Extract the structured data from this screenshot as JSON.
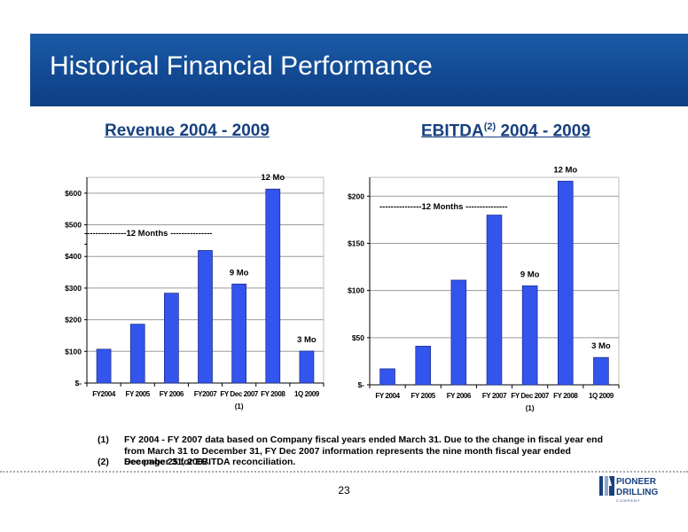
{
  "header": {
    "title": "Historical Financial Performance",
    "bg_color": "#1659a8"
  },
  "revenue": {
    "heading": "Revenue 2004 - 2009",
    "annotation_line1": "---------------12 Months ---------------",
    "annotation_line2": "-"
  },
  "ebitda": {
    "heading_prefix": "EBITDA",
    "heading_sup": "(2)",
    "heading_suffix": " 2004 - 2009",
    "annotation": "---------------12 Months ---------------"
  },
  "chart_data": [
    {
      "type": "bar",
      "title": "Revenue 2004 - 2009",
      "categories": [
        "FY2004",
        "FY 2005",
        "FY 2006",
        "FY2007",
        "FY Dec 2007",
        "FY 2008",
        "1Q 2009"
      ],
      "values": [
        107,
        186,
        284,
        419,
        313,
        613,
        101
      ],
      "ylim": [
        0,
        650
      ],
      "yticks": [
        0,
        100,
        200,
        300,
        400,
        500,
        600
      ],
      "ytick_labels": [
        "$-",
        "$100",
        "$200",
        "$300",
        "$400",
        "$500",
        "$600"
      ],
      "grid": true,
      "bar_color": "#3355ee",
      "annotations": [
        {
          "category": "FY Dec 2007",
          "text": "9 Mo"
        },
        {
          "category": "FY 2008",
          "text": "12 Mo"
        },
        {
          "category": "1Q 2009",
          "text": "3 Mo"
        }
      ],
      "footnote_marker": {
        "category": "FY Dec 2007",
        "text": "(1)"
      }
    },
    {
      "type": "bar",
      "title": "EBITDA(2) 2004 - 2009",
      "categories": [
        "FY 2004",
        "FY 2005",
        "FY 2006",
        "FY 2007",
        "FY Dec 2007",
        "FY 2008",
        "1Q 2009"
      ],
      "values": [
        17,
        41,
        111,
        180,
        105,
        216,
        29
      ],
      "ylim": [
        0,
        220
      ],
      "yticks": [
        0,
        50,
        100,
        150,
        200
      ],
      "ytick_labels": [
        "$-",
        "$50",
        "$100",
        "$150",
        "$200"
      ],
      "grid": true,
      "bar_color": "#3355ee",
      "annotations": [
        {
          "category": "FY Dec 2007",
          "text": "9 Mo"
        },
        {
          "category": "FY 2008",
          "text": "12 Mo"
        },
        {
          "category": "1Q 2009",
          "text": "3 Mo"
        }
      ],
      "footnote_marker": {
        "category": "FY Dec 2007",
        "text": "(1)"
      }
    }
  ],
  "footnotes": [
    {
      "marker": "(1)",
      "text": "FY 2004 - FY 2007 data based on Company fiscal years ended March 31.  Due to the change in fiscal year end from March 31 to December 31, FY Dec 2007 information represents the nine month fiscal year ended December 31, 2007."
    },
    {
      "marker": "(2)",
      "text": "See page 25 for EBITDA reconciliation."
    }
  ],
  "page_number": "23",
  "logo": {
    "line1": "PIONEER",
    "line2": "DRILLING",
    "line3": "C O M P A N Y",
    "color": "#17417f"
  }
}
